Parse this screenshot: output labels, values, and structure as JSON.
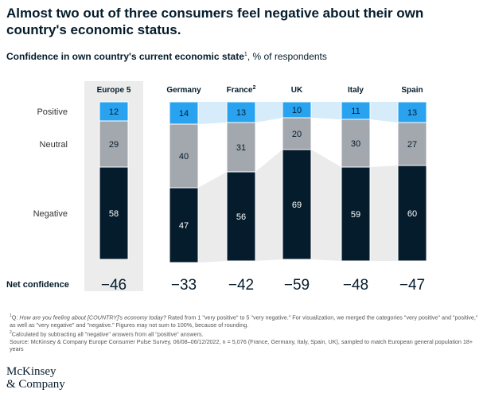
{
  "headline": "Almost two out of three consumers feel negative about their own country's economic status.",
  "subtitle": {
    "bold": "Confidence in own country's current economic state",
    "sup": "1",
    "rest": ", % of respondents"
  },
  "chart_data": {
    "type": "bar",
    "stacked": true,
    "categories": [
      "Europe 5",
      "Germany",
      "France",
      "UK",
      "Italy",
      "Spain"
    ],
    "category_sups": [
      "",
      "",
      "2",
      "",
      "",
      ""
    ],
    "series": [
      {
        "name": "Positive",
        "values": [
          12,
          14,
          13,
          10,
          11,
          13
        ]
      },
      {
        "name": "Neutral",
        "values": [
          29,
          40,
          31,
          20,
          30,
          27
        ]
      },
      {
        "name": "Negative",
        "values": [
          58,
          47,
          56,
          69,
          59,
          60
        ]
      }
    ],
    "net_confidence_label": "Net confidence",
    "net_confidence": [
      "−46",
      "−33",
      "−42",
      "−59",
      "−48",
      "−47"
    ],
    "highlighted_category": "Europe 5",
    "colors": {
      "positive": "#29a3f0",
      "neutral": "#a3a7ae",
      "negative": "#051c2c",
      "positive_band": "#d6ecfa",
      "negative_band": "#ebebeb",
      "highlight_panel": "#ececec",
      "label_dark": "#051c2c",
      "label_light": "#ffffff"
    }
  },
  "footnotes": [
    {
      "sup": "1",
      "prefix": "Q: ",
      "question": "How are you feeling about [COUNTRY]'s economy today?",
      "text": " Rated from 1 \"very positive\" to 5 \"very negative.\" For visualization, we merged the categories \"very positive\" and \"positive,\" as well as \"very negative\" and \"negative.\" Figures may not sum to 100%, because of rounding."
    },
    {
      "sup": "2",
      "text": "Calculated by subtracting all \"negative\" answers from all \"positive\" answers."
    }
  ],
  "source": "Source: McKinsey & Company Europe Consumer Pulse Survey, 06/08–06/12/2022, n = 5,076 (France, Germany, Italy, Spain, UK), sampled to match European general population 18+ years",
  "logo": {
    "line1": "McKinsey",
    "line2": "& Company"
  }
}
